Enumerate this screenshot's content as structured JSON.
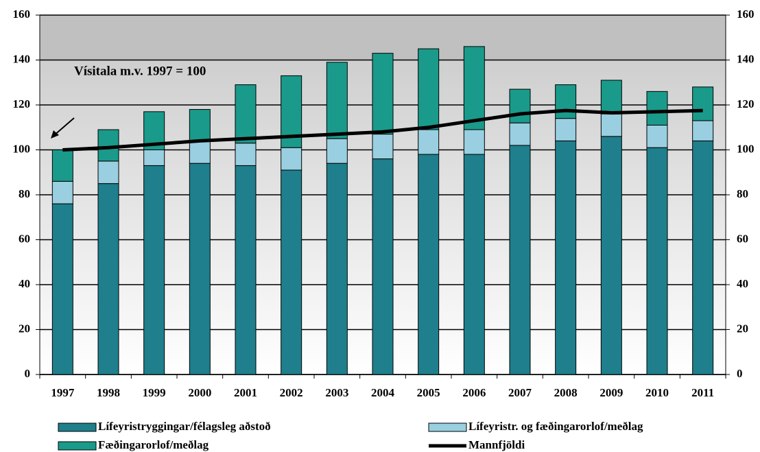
{
  "chart_data": {
    "type": "bar",
    "stacked": true,
    "annotation": "Vísitala m.v. 1997 = 100",
    "categories": [
      "1997",
      "1998",
      "1999",
      "2000",
      "2001",
      "2002",
      "2003",
      "2004",
      "2005",
      "2006",
      "2007",
      "2008",
      "2009",
      "2010",
      "2011"
    ],
    "series": [
      {
        "name": "Lífeyristryggingar/félagsleg aðstoð",
        "color": "#1f7f8c",
        "values": [
          76,
          85,
          93,
          94,
          93,
          91,
          94,
          96,
          98,
          98,
          102,
          104,
          106,
          101,
          104
        ]
      },
      {
        "name": "Lífeyristr. og fæðingarorlof/meðlag",
        "color": "#99cfe0",
        "values": [
          10,
          10,
          7,
          10,
          10,
          10,
          11,
          11,
          11,
          11,
          10,
          10,
          10,
          10,
          9
        ]
      },
      {
        "name": "Fæðingarorlof/meðlag",
        "color": "#1a9a8a",
        "values": [
          14,
          14,
          17,
          14,
          26,
          32,
          34,
          36,
          36,
          37,
          15,
          15,
          15,
          15,
          15
        ]
      },
      {
        "name": "Mannfjöldi",
        "type": "line",
        "color": "#000000",
        "values": [
          100,
          101,
          102.5,
          104,
          105,
          106,
          107,
          108,
          110,
          113,
          116,
          117.5,
          116.5,
          117,
          117.5
        ]
      }
    ],
    "ylim": [
      0,
      160
    ],
    "yticks": [
      0,
      20,
      40,
      60,
      80,
      100,
      120,
      140,
      160
    ],
    "y2lim": [
      0,
      160
    ],
    "y2ticks": [
      0,
      20,
      40,
      60,
      80,
      100,
      120,
      140,
      160
    ],
    "grid": true
  }
}
